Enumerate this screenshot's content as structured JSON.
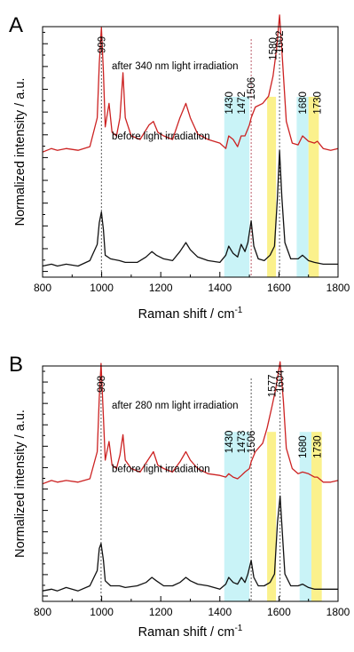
{
  "chart_data": [
    {
      "type": "line",
      "panel_label": "A",
      "xlabel": "Raman shift / cm",
      "xlabel_sup": "-1",
      "ylabel": "Normalized intensity / a.u.",
      "xlim": [
        800,
        1800
      ],
      "x_ticks": [
        800,
        1000,
        1200,
        1400,
        1600,
        1800
      ],
      "y_tick_count": 22,
      "highlights": [
        {
          "from": 1415,
          "to": 1500,
          "color": "#c9f3f7"
        },
        {
          "from": 1560,
          "to": 1590,
          "color": "#fbf18c"
        },
        {
          "from": 1660,
          "to": 1700,
          "color": "#c9f3f7"
        },
        {
          "from": 1700,
          "to": 1735,
          "color": "#fbf18c"
        }
      ],
      "series": [
        {
          "label_text": "after 340 nm light irradiation",
          "color": "#cc2222",
          "points": [
            [
              800,
              0.11
            ],
            [
              830,
              0.13
            ],
            [
              850,
              0.12
            ],
            [
              880,
              0.13
            ],
            [
              920,
              0.12
            ],
            [
              960,
              0.14
            ],
            [
              985,
              0.3
            ],
            [
              992,
              0.6
            ],
            [
              999,
              0.8
            ],
            [
              1006,
              0.55
            ],
            [
              1012,
              0.25
            ],
            [
              1025,
              0.38
            ],
            [
              1035,
              0.22
            ],
            [
              1050,
              0.2
            ],
            [
              1062,
              0.3
            ],
            [
              1072,
              0.55
            ],
            [
              1080,
              0.3
            ],
            [
              1100,
              0.2
            ],
            [
              1130,
              0.18
            ],
            [
              1160,
              0.26
            ],
            [
              1175,
              0.28
            ],
            [
              1190,
              0.22
            ],
            [
              1210,
              0.2
            ],
            [
              1240,
              0.18
            ],
            [
              1265,
              0.3
            ],
            [
              1285,
              0.38
            ],
            [
              1300,
              0.3
            ],
            [
              1325,
              0.21
            ],
            [
              1360,
              0.18
            ],
            [
              1400,
              0.16
            ],
            [
              1420,
              0.13
            ],
            [
              1430,
              0.2
            ],
            [
              1445,
              0.18
            ],
            [
              1460,
              0.14
            ],
            [
              1472,
              0.2
            ],
            [
              1485,
              0.2
            ],
            [
              1500,
              0.26
            ],
            [
              1506,
              0.3
            ],
            [
              1520,
              0.36
            ],
            [
              1545,
              0.38
            ],
            [
              1565,
              0.42
            ],
            [
              1580,
              0.53
            ],
            [
              1592,
              0.68
            ],
            [
              1602,
              0.87
            ],
            [
              1612,
              0.62
            ],
            [
              1625,
              0.28
            ],
            [
              1645,
              0.16
            ],
            [
              1665,
              0.15
            ],
            [
              1680,
              0.2
            ],
            [
              1700,
              0.17
            ],
            [
              1720,
              0.16
            ],
            [
              1730,
              0.17
            ],
            [
              1750,
              0.13
            ],
            [
              1775,
              0.12
            ],
            [
              1800,
              0.13
            ]
          ]
        },
        {
          "label_text": "before light irradiation",
          "color": "#111111",
          "points": [
            [
              800,
              0.02
            ],
            [
              830,
              0.03
            ],
            [
              850,
              0.02
            ],
            [
              880,
              0.03
            ],
            [
              920,
              0.02
            ],
            [
              960,
              0.05
            ],
            [
              985,
              0.14
            ],
            [
              992,
              0.26
            ],
            [
              999,
              0.32
            ],
            [
              1006,
              0.22
            ],
            [
              1012,
              0.08
            ],
            [
              1030,
              0.06
            ],
            [
              1060,
              0.05
            ],
            [
              1080,
              0.04
            ],
            [
              1120,
              0.04
            ],
            [
              1150,
              0.07
            ],
            [
              1170,
              0.1
            ],
            [
              1185,
              0.08
            ],
            [
              1210,
              0.06
            ],
            [
              1240,
              0.05
            ],
            [
              1265,
              0.1
            ],
            [
              1285,
              0.15
            ],
            [
              1300,
              0.11
            ],
            [
              1325,
              0.07
            ],
            [
              1360,
              0.05
            ],
            [
              1400,
              0.04
            ],
            [
              1420,
              0.08
            ],
            [
              1430,
              0.13
            ],
            [
              1445,
              0.09
            ],
            [
              1460,
              0.07
            ],
            [
              1472,
              0.14
            ],
            [
              1485,
              0.1
            ],
            [
              1495,
              0.15
            ],
            [
              1506,
              0.27
            ],
            [
              1515,
              0.13
            ],
            [
              1530,
              0.06
            ],
            [
              1550,
              0.05
            ],
            [
              1570,
              0.08
            ],
            [
              1585,
              0.13
            ],
            [
              1595,
              0.4
            ],
            [
              1602,
              0.66
            ],
            [
              1610,
              0.4
            ],
            [
              1620,
              0.15
            ],
            [
              1640,
              0.06
            ],
            [
              1665,
              0.06
            ],
            [
              1680,
              0.08
            ],
            [
              1700,
              0.05
            ],
            [
              1720,
              0.04
            ],
            [
              1750,
              0.03
            ],
            [
              1800,
              0.03
            ]
          ]
        }
      ],
      "peak_labels": [
        {
          "x": 999,
          "text": "999",
          "y": 0.8
        },
        {
          "x": 1430,
          "text": "1430",
          "y": 0.3
        },
        {
          "x": 1472,
          "text": "1472",
          "y": 0.3
        },
        {
          "x": 1506,
          "text": "1506",
          "y": 0.38
        },
        {
          "x": 1580,
          "text": "1580",
          "y": 0.6
        },
        {
          "x": 1602,
          "text": "1602",
          "y": 0.88
        },
        {
          "x": 1680,
          "text": "1680",
          "y": 0.3
        },
        {
          "x": 1730,
          "text": "1730",
          "y": 0.3
        }
      ],
      "dashed_lines": [
        {
          "x": 999,
          "color": "#333333"
        },
        {
          "x": 1506,
          "color": "#aa3344"
        },
        {
          "x": 1602,
          "color": "#333333"
        }
      ]
    },
    {
      "type": "line",
      "panel_label": "B",
      "xlabel": "Raman shift / cm",
      "xlabel_sup": "-1",
      "ylabel": "Normalized intensity / a.u.",
      "xlim": [
        800,
        1800
      ],
      "x_ticks": [
        800,
        1000,
        1200,
        1400,
        1600,
        1800
      ],
      "y_tick_count": 22,
      "highlights": [
        {
          "from": 1415,
          "to": 1500,
          "color": "#c9f3f7"
        },
        {
          "from": 1560,
          "to": 1590,
          "color": "#fbf18c"
        },
        {
          "from": 1670,
          "to": 1710,
          "color": "#c9f3f7"
        },
        {
          "from": 1710,
          "to": 1745,
          "color": "#fbf18c"
        }
      ],
      "series": [
        {
          "label_text": "after 280 nm light irradiation",
          "color": "#cc2222",
          "points": [
            [
              800,
              0.11
            ],
            [
              830,
              0.13
            ],
            [
              850,
              0.12
            ],
            [
              880,
              0.13
            ],
            [
              920,
              0.12
            ],
            [
              960,
              0.14
            ],
            [
              985,
              0.3
            ],
            [
              992,
              0.62
            ],
            [
              998,
              0.82
            ],
            [
              1006,
              0.5
            ],
            [
              1012,
              0.25
            ],
            [
              1025,
              0.36
            ],
            [
              1035,
              0.22
            ],
            [
              1050,
              0.2
            ],
            [
              1062,
              0.28
            ],
            [
              1072,
              0.4
            ],
            [
              1080,
              0.25
            ],
            [
              1100,
              0.2
            ],
            [
              1130,
              0.18
            ],
            [
              1160,
              0.26
            ],
            [
              1175,
              0.3
            ],
            [
              1190,
              0.22
            ],
            [
              1210,
              0.2
            ],
            [
              1240,
              0.18
            ],
            [
              1265,
              0.24
            ],
            [
              1285,
              0.3
            ],
            [
              1300,
              0.25
            ],
            [
              1325,
              0.2
            ],
            [
              1360,
              0.17
            ],
            [
              1400,
              0.16
            ],
            [
              1420,
              0.15
            ],
            [
              1430,
              0.17
            ],
            [
              1445,
              0.15
            ],
            [
              1460,
              0.14
            ],
            [
              1473,
              0.16
            ],
            [
              1485,
              0.18
            ],
            [
              1500,
              0.2
            ],
            [
              1506,
              0.24
            ],
            [
              1520,
              0.3
            ],
            [
              1545,
              0.35
            ],
            [
              1560,
              0.44
            ],
            [
              1577,
              0.57
            ],
            [
              1590,
              0.68
            ],
            [
              1604,
              0.83
            ],
            [
              1615,
              0.6
            ],
            [
              1625,
              0.32
            ],
            [
              1645,
              0.2
            ],
            [
              1665,
              0.17
            ],
            [
              1680,
              0.18
            ],
            [
              1700,
              0.17
            ],
            [
              1720,
              0.15
            ],
            [
              1730,
              0.15
            ],
            [
              1750,
              0.12
            ],
            [
              1775,
              0.12
            ],
            [
              1800,
              0.13
            ]
          ]
        },
        {
          "label_text": "before light irradiation",
          "color": "#111111",
          "points": [
            [
              800,
              0.02
            ],
            [
              830,
              0.03
            ],
            [
              850,
              0.02
            ],
            [
              880,
              0.04
            ],
            [
              920,
              0.02
            ],
            [
              960,
              0.05
            ],
            [
              985,
              0.14
            ],
            [
              992,
              0.27
            ],
            [
              998,
              0.3
            ],
            [
              1006,
              0.2
            ],
            [
              1012,
              0.08
            ],
            [
              1030,
              0.05
            ],
            [
              1060,
              0.05
            ],
            [
              1080,
              0.04
            ],
            [
              1120,
              0.05
            ],
            [
              1150,
              0.07
            ],
            [
              1170,
              0.1
            ],
            [
              1185,
              0.08
            ],
            [
              1210,
              0.05
            ],
            [
              1240,
              0.05
            ],
            [
              1265,
              0.07
            ],
            [
              1285,
              0.1
            ],
            [
              1300,
              0.08
            ],
            [
              1325,
              0.06
            ],
            [
              1360,
              0.05
            ],
            [
              1400,
              0.03
            ],
            [
              1420,
              0.06
            ],
            [
              1430,
              0.1
            ],
            [
              1445,
              0.07
            ],
            [
              1460,
              0.06
            ],
            [
              1473,
              0.1
            ],
            [
              1485,
              0.07
            ],
            [
              1495,
              0.12
            ],
            [
              1506,
              0.2
            ],
            [
              1515,
              0.1
            ],
            [
              1530,
              0.05
            ],
            [
              1550,
              0.05
            ],
            [
              1570,
              0.07
            ],
            [
              1585,
              0.12
            ],
            [
              1595,
              0.42
            ],
            [
              1604,
              0.58
            ],
            [
              1612,
              0.35
            ],
            [
              1620,
              0.12
            ],
            [
              1640,
              0.05
            ],
            [
              1665,
              0.05
            ],
            [
              1680,
              0.06
            ],
            [
              1700,
              0.04
            ],
            [
              1720,
              0.03
            ],
            [
              1750,
              0.03
            ],
            [
              1800,
              0.03
            ]
          ]
        }
      ],
      "peak_labels": [
        {
          "x": 998,
          "text": "998",
          "y": 0.82
        },
        {
          "x": 1430,
          "text": "1430",
          "y": 0.27
        },
        {
          "x": 1473,
          "text": "1473",
          "y": 0.27
        },
        {
          "x": 1506,
          "text": "1506",
          "y": 0.27
        },
        {
          "x": 1577,
          "text": "1577",
          "y": 0.6
        },
        {
          "x": 1604,
          "text": "1604",
          "y": 0.87
        },
        {
          "x": 1680,
          "text": "1680",
          "y": 0.24
        },
        {
          "x": 1730,
          "text": "1730",
          "y": 0.24
        }
      ],
      "dashed_lines": [
        {
          "x": 998,
          "color": "#333333"
        },
        {
          "x": 1506,
          "color": "#333333"
        },
        {
          "x": 1604,
          "color": "#333333"
        }
      ]
    }
  ]
}
